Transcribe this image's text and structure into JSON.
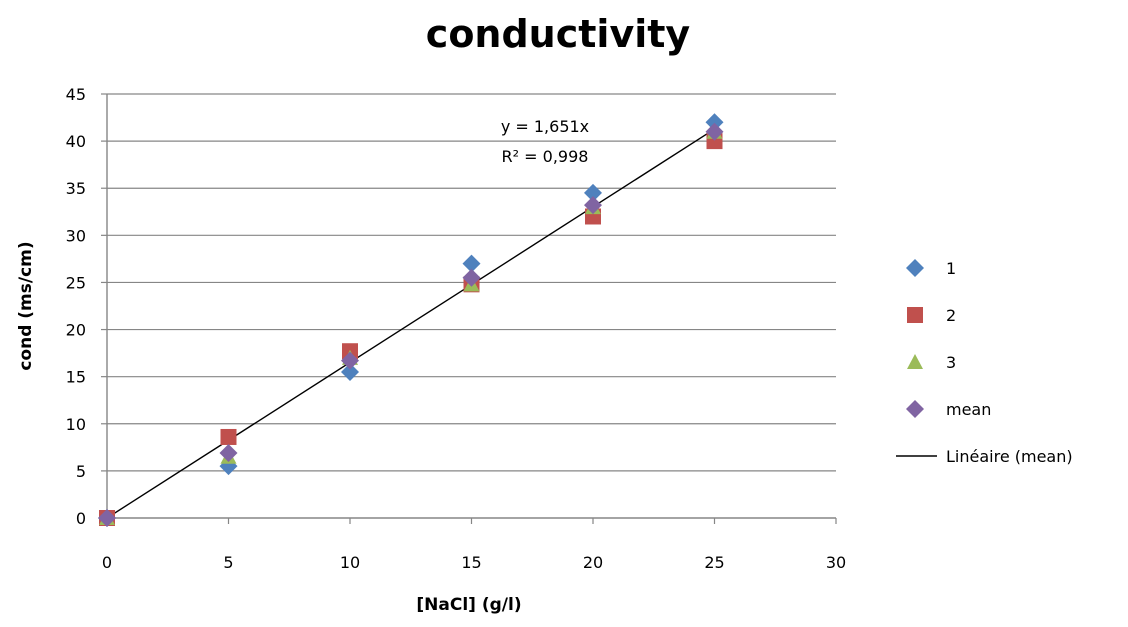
{
  "chart_data": {
    "type": "scatter",
    "title": "conductivity",
    "xlabel": "[NaCl] (g/l)",
    "ylabel": "cond (ms/cm)",
    "xlim": [
      0,
      30
    ],
    "ylim": [
      0,
      45
    ],
    "xticks": [
      0,
      5,
      10,
      15,
      20,
      25,
      30
    ],
    "yticks": [
      0,
      5,
      10,
      15,
      20,
      25,
      30,
      35,
      40,
      45
    ],
    "grid": "horizontal",
    "legend_position": "right",
    "series": [
      {
        "name": "1",
        "marker": "diamond",
        "color": "#4F81BD",
        "x": [
          0,
          5,
          10,
          15,
          20,
          25
        ],
        "y": [
          0,
          5.5,
          15.5,
          27,
          34.5,
          42
        ]
      },
      {
        "name": "2",
        "marker": "square",
        "color": "#C0504D",
        "x": [
          0,
          5,
          10,
          15,
          20,
          25
        ],
        "y": [
          0,
          8.6,
          17.7,
          24.8,
          32,
          40
        ]
      },
      {
        "name": "3",
        "marker": "triangle",
        "color": "#9BBB59",
        "x": [
          0,
          5,
          10,
          15,
          20,
          25
        ],
        "y": [
          0,
          6.5,
          17,
          24.8,
          33,
          41
        ]
      },
      {
        "name": "mean",
        "marker": "diamond",
        "color": "#8064A2",
        "x": [
          0,
          5,
          10,
          15,
          20,
          25
        ],
        "y": [
          0,
          6.9,
          16.7,
          25.5,
          33.2,
          41
        ]
      }
    ],
    "trendline": {
      "name": "Linéaire (mean)",
      "color": "#000000",
      "slope": 1.651,
      "x_range": [
        0,
        25
      ],
      "equation": "y = 1,651x",
      "r2_label": "R² = 0,998"
    }
  }
}
